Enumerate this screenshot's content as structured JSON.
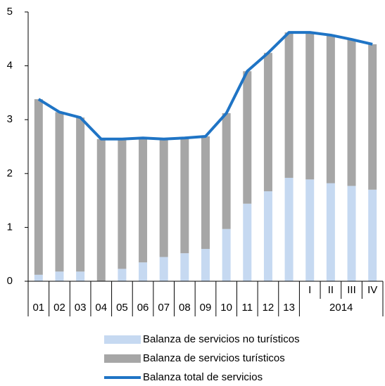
{
  "chart_data": {
    "type": "bar",
    "stacked": true,
    "categories": [
      "01",
      "02",
      "03",
      "04",
      "05",
      "06",
      "07",
      "08",
      "09",
      "10",
      "11",
      "12",
      "13",
      "I",
      "II",
      "III",
      "IV"
    ],
    "x_group_label": "2014",
    "series": [
      {
        "name": "Balanza de servicios no turísticos",
        "color": "#c6d9f1",
        "type": "bar",
        "values": [
          0.12,
          0.18,
          0.18,
          0.0,
          0.23,
          0.35,
          0.45,
          0.52,
          0.6,
          0.97,
          1.44,
          1.67,
          1.92,
          1.89,
          1.82,
          1.77,
          1.7
        ]
      },
      {
        "name": "Balanza de servicios turísticos",
        "color": "#a6a6a6",
        "type": "bar",
        "values": [
          3.26,
          2.96,
          2.86,
          2.64,
          2.41,
          2.31,
          2.19,
          2.14,
          2.09,
          2.15,
          2.46,
          2.57,
          2.7,
          2.73,
          2.75,
          2.72,
          2.7
        ]
      },
      {
        "name": "Balanza total de servicios",
        "color": "#1f74c5",
        "type": "line",
        "values": [
          3.38,
          3.14,
          3.04,
          2.64,
          2.64,
          2.66,
          2.64,
          2.66,
          2.69,
          3.12,
          3.9,
          4.24,
          4.62,
          4.62,
          4.57,
          4.49,
          4.4
        ]
      }
    ],
    "ylim": [
      0,
      5
    ],
    "yticks": [
      0,
      1,
      2,
      3,
      4,
      5
    ]
  }
}
